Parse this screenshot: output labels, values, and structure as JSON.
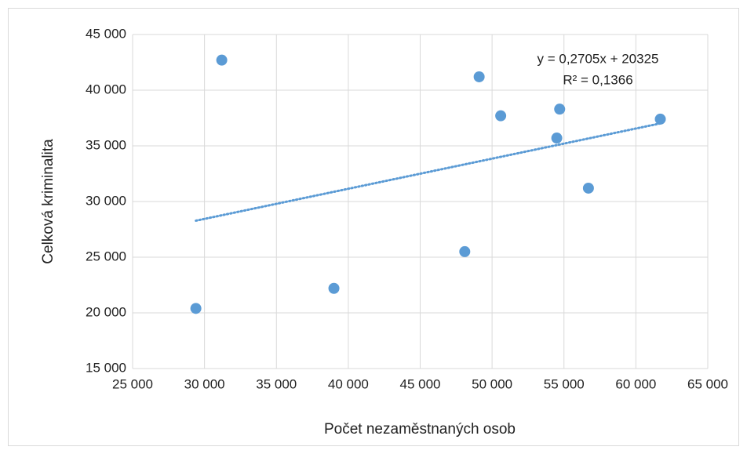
{
  "chart_data": {
    "type": "scatter",
    "x_label": "Počet nezaměstnaných osob",
    "y_label": "Celková kriminalita",
    "series": [
      {
        "color": "#5b9bd5",
        "x": [
          31200,
          29400,
          39000,
          48100,
          49100,
          50600,
          54700,
          54500,
          56700,
          61700
        ],
        "values": [
          42700,
          20400,
          22200,
          25500,
          41200,
          37700,
          38300,
          35700,
          31200,
          37400
        ]
      }
    ],
    "trendline": {
      "slope": 0.2705,
      "intercept": 20325,
      "equation": "y = 0,2705x + 20325",
      "r2": "R² = 0,1366",
      "color": "#5b9bd5"
    },
    "xlim": [
      25000,
      65000
    ],
    "ylim": [
      15000,
      45000
    ],
    "xticks": [
      {
        "value": 25000,
        "label": "25 000"
      },
      {
        "value": 30000,
        "label": "30 000"
      },
      {
        "value": 35000,
        "label": "35 000"
      },
      {
        "value": 40000,
        "label": "40 000"
      },
      {
        "value": 45000,
        "label": "45 000"
      },
      {
        "value": 50000,
        "label": "50 000"
      },
      {
        "value": 55000,
        "label": "55 000"
      },
      {
        "value": 60000,
        "label": "60 000"
      },
      {
        "value": 65000,
        "label": "65 000"
      }
    ],
    "yticks": [
      {
        "value": 15000,
        "label": "15 000"
      },
      {
        "value": 20000,
        "label": "20 000"
      },
      {
        "value": 25000,
        "label": "25 000"
      },
      {
        "value": 30000,
        "label": "30 000"
      },
      {
        "value": 35000,
        "label": "35 000"
      },
      {
        "value": 40000,
        "label": "40 000"
      },
      {
        "value": 45000,
        "label": "45 000"
      }
    ],
    "grid": true
  }
}
